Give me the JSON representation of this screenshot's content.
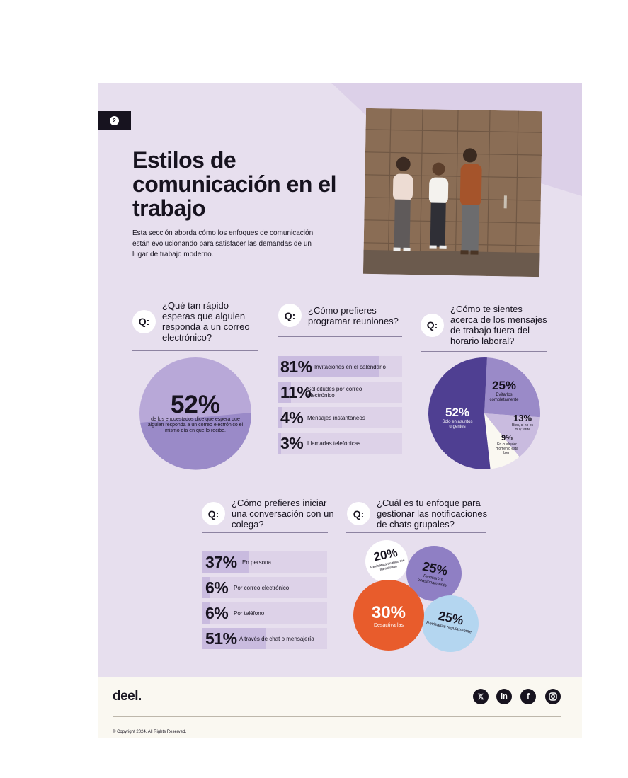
{
  "page_number": "2",
  "title": "Estilos de comunicación en el trabajo",
  "intro": "Esta sección aborda cómo los enfoques de comunicación están evolucionando para satisfacer las demandas de un lugar de trabajo moderno.",
  "colors": {
    "background": "#e7dfee",
    "dark_purple": "#4f3f92",
    "medium_purple": "#9a8ac8",
    "light_purple": "#c9bbdf",
    "orange": "#e85c2c",
    "light_blue": "#b4d6f0"
  },
  "q_label": "Q:",
  "q1": {
    "question": "¿Qué tan rápido esperas que alguien responda a un correo electrónico?",
    "value": "52%",
    "caption": "de los encuestados dice que espera que alguien responda a un correo electrónico el mismo día en que lo recibe."
  },
  "q2": {
    "question": "¿Cómo prefieres programar reuniones?",
    "items": [
      {
        "pct": "81%",
        "label": "Invitaciones en el calendario",
        "value": 81
      },
      {
        "pct": "11%",
        "label": "Solicitudes por correo electrónico",
        "value": 11
      },
      {
        "pct": "4%",
        "label": "Mensajes instantáneos",
        "value": 4
      },
      {
        "pct": "3%",
        "label": "Llamadas telefónicas",
        "value": 3
      }
    ]
  },
  "q3": {
    "question": "¿Cómo te sientes acerca de los mensajes de trabajo fuera del horario laboral?",
    "slices": [
      {
        "pct": "52%",
        "label": "Solo en asuntos urgentes",
        "value": 52,
        "color": "#4f3f92"
      },
      {
        "pct": "25%",
        "label": "Evítarlos completamente",
        "value": 25,
        "color": "#9a8ac8"
      },
      {
        "pct": "13%",
        "label": "Bien, si no es muy tarde",
        "value": 13,
        "color": "#c9bbdf"
      },
      {
        "pct": "9%",
        "label": "En cualquier momento está bien",
        "value": 9,
        "color": "#faf8f1"
      }
    ]
  },
  "q4": {
    "question": "¿Cómo prefieres iniciar una conversación con un colega?",
    "items": [
      {
        "pct": "37%",
        "label": "En persona",
        "value": 37
      },
      {
        "pct": "6%",
        "label": "Por correo electrónico",
        "value": 6
      },
      {
        "pct": "6%",
        "label": "Por teléfono",
        "value": 6
      },
      {
        "pct": "51%",
        "label": "A través de chat o mensajería",
        "value": 51
      }
    ]
  },
  "q5": {
    "question": "¿Cuál es tu enfoque para gestionar las notificaciones de chats grupales?",
    "bubbles": [
      {
        "pct": "20%",
        "label": "Revisarlas cuando me mencionan",
        "value": 20
      },
      {
        "pct": "25%",
        "label": "Revisarlas ocasionalmente",
        "value": 25
      },
      {
        "pct": "30%",
        "label": "Desactivarlas",
        "value": 30
      },
      {
        "pct": "25%",
        "label": "Revisarlas regularmente",
        "value": 25
      }
    ]
  },
  "footer": {
    "logo": "deel.",
    "social_icons": [
      "x-icon",
      "linkedin-icon",
      "facebook-icon",
      "instagram-icon"
    ],
    "copyright": "© Copyright 2024. All Rights Reserved."
  }
}
